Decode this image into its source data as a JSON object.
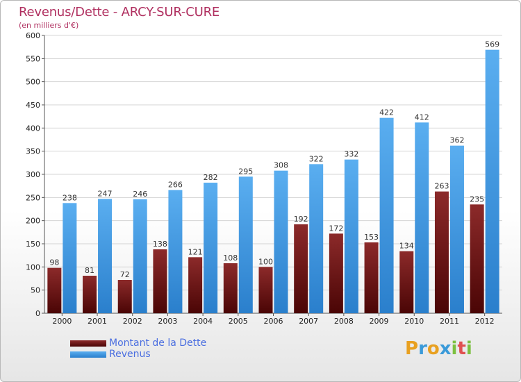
{
  "chart_data": {
    "type": "bar",
    "title": "Revenus/Dette - ARCY-SUR-CURE",
    "subtitle": "(en milliers d'€)",
    "categories": [
      "2000",
      "2001",
      "2002",
      "2003",
      "2004",
      "2005",
      "2006",
      "2007",
      "2008",
      "2009",
      "2010",
      "2011",
      "2012"
    ],
    "series": [
      {
        "name": "Montant de la Dette",
        "color": "#7a1a1a",
        "values": [
          98,
          81,
          72,
          138,
          121,
          108,
          100,
          192,
          172,
          153,
          134,
          263,
          235
        ]
      },
      {
        "name": "Revenus",
        "color": "#3f9be6",
        "values": [
          238,
          247,
          246,
          266,
          282,
          295,
          308,
          322,
          332,
          422,
          412,
          362,
          569
        ]
      }
    ],
    "ylim": [
      0,
      600
    ],
    "yticks": [
      0,
      50,
      100,
      150,
      200,
      250,
      300,
      350,
      400,
      450,
      500,
      550,
      600
    ],
    "grid": true,
    "legend": "bottom-left"
  },
  "logo": {
    "letters": [
      "P",
      "r",
      "o",
      "x",
      "i",
      "t",
      "i"
    ],
    "colors": [
      "#e8a020",
      "#3a9ad9",
      "#e8a020",
      "#3a9ad9",
      "#7cc040",
      "#e05050",
      "#7cc040"
    ]
  }
}
